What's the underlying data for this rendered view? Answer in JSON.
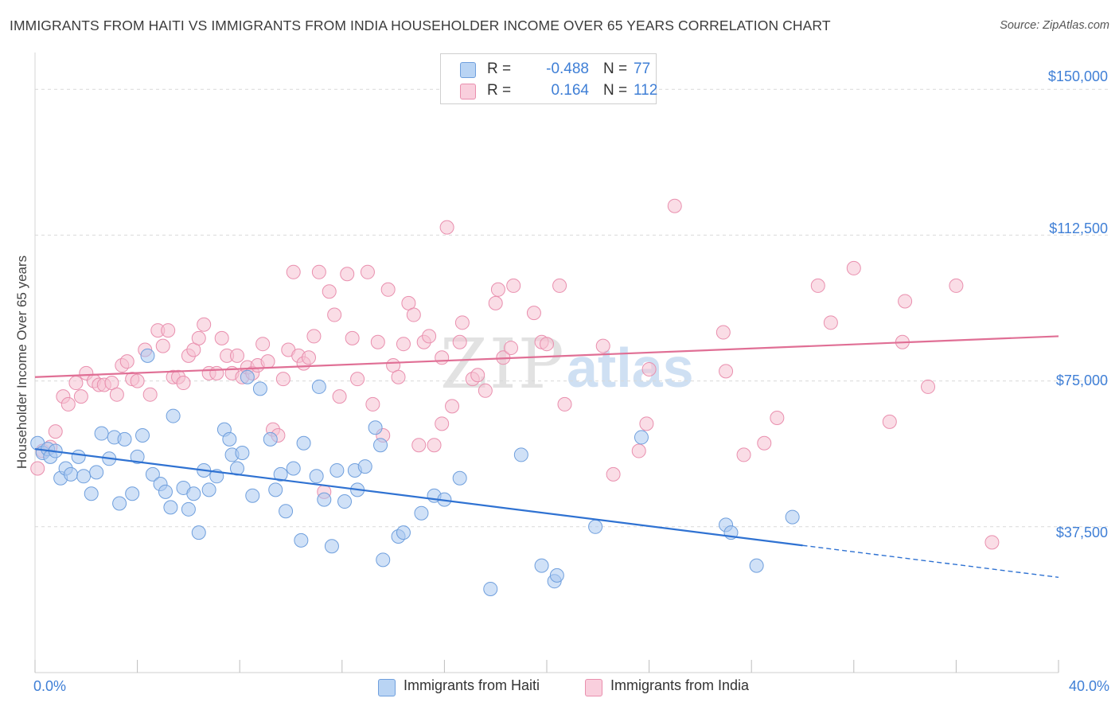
{
  "header": {
    "title": "IMMIGRANTS FROM HAITI VS IMMIGRANTS FROM INDIA HOUSEHOLDER INCOME OVER 65 YEARS CORRELATION CHART",
    "source": "Source: ZipAtlas.com"
  },
  "watermark": {
    "zip": "ZIP",
    "atlas": "atlas"
  },
  "legend": {
    "haiti": {
      "r_label": "R =",
      "r_value": "-0.488",
      "n_label": "N =",
      "n_value": "77"
    },
    "india": {
      "r_label": "R =",
      "r_value": "0.164",
      "n_label": "N =",
      "n_value": "112"
    }
  },
  "bottom_legend": {
    "haiti": "Immigrants from Haiti",
    "india": "Immigrants from India"
  },
  "colors": {
    "haiti_fill": "#a9c8f0",
    "haiti_stroke": "#6f9fdd",
    "haiti_line": "#2f72d2",
    "india_fill": "#f6c1d2",
    "india_stroke": "#e98fae",
    "india_line": "#e06f95",
    "tick_text": "#3f7fd6",
    "grid": "#d9d9d9"
  },
  "chart_data": {
    "type": "scatter",
    "title": "IMMIGRANTS FROM HAITI VS IMMIGRANTS FROM INDIA HOUSEHOLDER INCOME OVER 65 YEARS CORRELATION CHART",
    "xlabel": "",
    "ylabel": "Householder Income Over 65 years",
    "xlim": [
      0,
      40
    ],
    "ylim": [
      0,
      157000
    ],
    "x_tick_labels": [
      "0.0%",
      "40.0%"
    ],
    "y_ticks": [
      37500,
      75000,
      112500,
      150000
    ],
    "y_tick_labels": [
      "$37,500",
      "$75,000",
      "$112,500",
      "$150,000"
    ],
    "grid": true,
    "legend_position": "top-center",
    "series": [
      {
        "name": "Immigrants from Haiti",
        "r": -0.488,
        "n": 77,
        "trend": {
          "x0": 0,
          "y0": 57500,
          "x1": 30.0,
          "y1": 32700,
          "dash_to_x": 40,
          "dash_to_y": 24500
        },
        "points": [
          [
            0.1,
            59000
          ],
          [
            0.3,
            56500
          ],
          [
            0.5,
            57500
          ],
          [
            0.6,
            55500
          ],
          [
            0.8,
            57000
          ],
          [
            1.0,
            50000
          ],
          [
            1.2,
            52500
          ],
          [
            1.4,
            51000
          ],
          [
            1.7,
            55500
          ],
          [
            1.9,
            50500
          ],
          [
            2.2,
            46000
          ],
          [
            2.4,
            51500
          ],
          [
            2.6,
            61500
          ],
          [
            2.9,
            55000
          ],
          [
            3.1,
            60500
          ],
          [
            3.3,
            43500
          ],
          [
            3.5,
            60000
          ],
          [
            3.8,
            46000
          ],
          [
            4.0,
            55500
          ],
          [
            4.2,
            61000
          ],
          [
            4.4,
            81500
          ],
          [
            4.6,
            51000
          ],
          [
            4.9,
            48500
          ],
          [
            5.1,
            46500
          ],
          [
            5.3,
            42500
          ],
          [
            5.4,
            66000
          ],
          [
            5.8,
            47500
          ],
          [
            6.0,
            42000
          ],
          [
            6.2,
            46000
          ],
          [
            6.4,
            36000
          ],
          [
            6.6,
            52000
          ],
          [
            6.8,
            47000
          ],
          [
            7.1,
            50500
          ],
          [
            7.4,
            62500
          ],
          [
            7.6,
            60000
          ],
          [
            7.9,
            52500
          ],
          [
            7.7,
            56000
          ],
          [
            8.1,
            56500
          ],
          [
            8.3,
            76000
          ],
          [
            8.5,
            45500
          ],
          [
            8.8,
            73000
          ],
          [
            9.2,
            60000
          ],
          [
            9.4,
            47000
          ],
          [
            9.6,
            51000
          ],
          [
            9.8,
            41500
          ],
          [
            10.1,
            52500
          ],
          [
            10.4,
            34000
          ],
          [
            10.5,
            59000
          ],
          [
            11.0,
            50500
          ],
          [
            11.1,
            73500
          ],
          [
            11.3,
            44500
          ],
          [
            11.6,
            32500
          ],
          [
            11.8,
            52000
          ],
          [
            12.1,
            44000
          ],
          [
            12.5,
            52000
          ],
          [
            12.6,
            47000
          ],
          [
            12.9,
            53000
          ],
          [
            13.3,
            63000
          ],
          [
            13.5,
            58500
          ],
          [
            13.6,
            29000
          ],
          [
            14.2,
            35000
          ],
          [
            14.4,
            36000
          ],
          [
            15.1,
            41000
          ],
          [
            15.6,
            45500
          ],
          [
            16.0,
            44500
          ],
          [
            16.6,
            50000
          ],
          [
            17.8,
            21500
          ],
          [
            19.0,
            56000
          ],
          [
            19.8,
            27500
          ],
          [
            20.3,
            23500
          ],
          [
            20.4,
            25000
          ],
          [
            21.9,
            37500
          ],
          [
            23.7,
            60500
          ],
          [
            27.0,
            38000
          ],
          [
            27.2,
            36000
          ],
          [
            28.2,
            27500
          ],
          [
            29.6,
            40000
          ]
        ]
      },
      {
        "name": "Immigrants from India",
        "r": 0.164,
        "n": 112,
        "trend": {
          "x0": 0,
          "y0": 76000,
          "x1": 40,
          "y1": 86500
        },
        "points": [
          [
            0.1,
            52500
          ],
          [
            0.3,
            57000
          ],
          [
            0.6,
            58000
          ],
          [
            0.8,
            62000
          ],
          [
            1.1,
            71000
          ],
          [
            1.3,
            69000
          ],
          [
            1.6,
            74500
          ],
          [
            1.8,
            71000
          ],
          [
            2.0,
            77000
          ],
          [
            2.3,
            75000
          ],
          [
            2.5,
            74000
          ],
          [
            2.7,
            74000
          ],
          [
            3.0,
            74500
          ],
          [
            3.2,
            71500
          ],
          [
            3.4,
            79000
          ],
          [
            3.6,
            80000
          ],
          [
            3.8,
            75500
          ],
          [
            4.0,
            75000
          ],
          [
            4.3,
            83000
          ],
          [
            4.5,
            71500
          ],
          [
            4.8,
            88000
          ],
          [
            5.0,
            84000
          ],
          [
            5.2,
            88000
          ],
          [
            5.4,
            76000
          ],
          [
            5.6,
            76000
          ],
          [
            5.8,
            74500
          ],
          [
            6.0,
            81500
          ],
          [
            6.2,
            83000
          ],
          [
            6.4,
            86000
          ],
          [
            6.6,
            89500
          ],
          [
            6.8,
            77000
          ],
          [
            7.1,
            77000
          ],
          [
            7.3,
            86000
          ],
          [
            7.5,
            81500
          ],
          [
            7.7,
            77000
          ],
          [
            7.9,
            81500
          ],
          [
            8.1,
            76000
          ],
          [
            8.3,
            78500
          ],
          [
            8.5,
            77000
          ],
          [
            8.7,
            79000
          ],
          [
            8.9,
            84500
          ],
          [
            9.1,
            80000
          ],
          [
            9.3,
            62500
          ],
          [
            9.5,
            61000
          ],
          [
            9.7,
            75500
          ],
          [
            9.9,
            83000
          ],
          [
            10.1,
            103000
          ],
          [
            10.3,
            81500
          ],
          [
            10.5,
            79500
          ],
          [
            10.7,
            81000
          ],
          [
            10.9,
            86500
          ],
          [
            11.1,
            103000
          ],
          [
            11.3,
            46500
          ],
          [
            11.5,
            98000
          ],
          [
            11.7,
            92000
          ],
          [
            11.9,
            71000
          ],
          [
            12.2,
            102500
          ],
          [
            12.4,
            86000
          ],
          [
            12.6,
            75500
          ],
          [
            13.0,
            103000
          ],
          [
            13.2,
            69000
          ],
          [
            13.4,
            85000
          ],
          [
            13.6,
            61000
          ],
          [
            13.8,
            98500
          ],
          [
            14.0,
            79000
          ],
          [
            14.2,
            76000
          ],
          [
            14.4,
            84500
          ],
          [
            14.6,
            95000
          ],
          [
            14.8,
            92000
          ],
          [
            15.0,
            58500
          ],
          [
            15.2,
            85000
          ],
          [
            15.4,
            86500
          ],
          [
            15.6,
            58500
          ],
          [
            15.9,
            64000
          ],
          [
            15.9,
            81000
          ],
          [
            16.1,
            114500
          ],
          [
            16.3,
            68500
          ],
          [
            16.6,
            85000
          ],
          [
            16.7,
            90000
          ],
          [
            17.1,
            75500
          ],
          [
            17.3,
            76500
          ],
          [
            17.6,
            72500
          ],
          [
            18.0,
            95000
          ],
          [
            18.1,
            98500
          ],
          [
            18.3,
            81000
          ],
          [
            18.6,
            83500
          ],
          [
            18.7,
            99500
          ],
          [
            19.5,
            92500
          ],
          [
            19.8,
            85000
          ],
          [
            20.0,
            84500
          ],
          [
            20.5,
            99500
          ],
          [
            20.7,
            69000
          ],
          [
            22.2,
            84000
          ],
          [
            22.6,
            51000
          ],
          [
            23.6,
            57000
          ],
          [
            23.9,
            64000
          ],
          [
            24.0,
            78000
          ],
          [
            25.0,
            120000
          ],
          [
            26.9,
            87500
          ],
          [
            27.0,
            77500
          ],
          [
            27.7,
            56000
          ],
          [
            28.5,
            59000
          ],
          [
            30.6,
            99500
          ],
          [
            31.1,
            90000
          ],
          [
            32.0,
            104000
          ],
          [
            33.4,
            64500
          ],
          [
            33.9,
            85000
          ],
          [
            34.0,
            95500
          ],
          [
            34.9,
            73500
          ],
          [
            36.0,
            99500
          ],
          [
            37.4,
            33500
          ],
          [
            29.0,
            65500
          ]
        ]
      }
    ]
  }
}
